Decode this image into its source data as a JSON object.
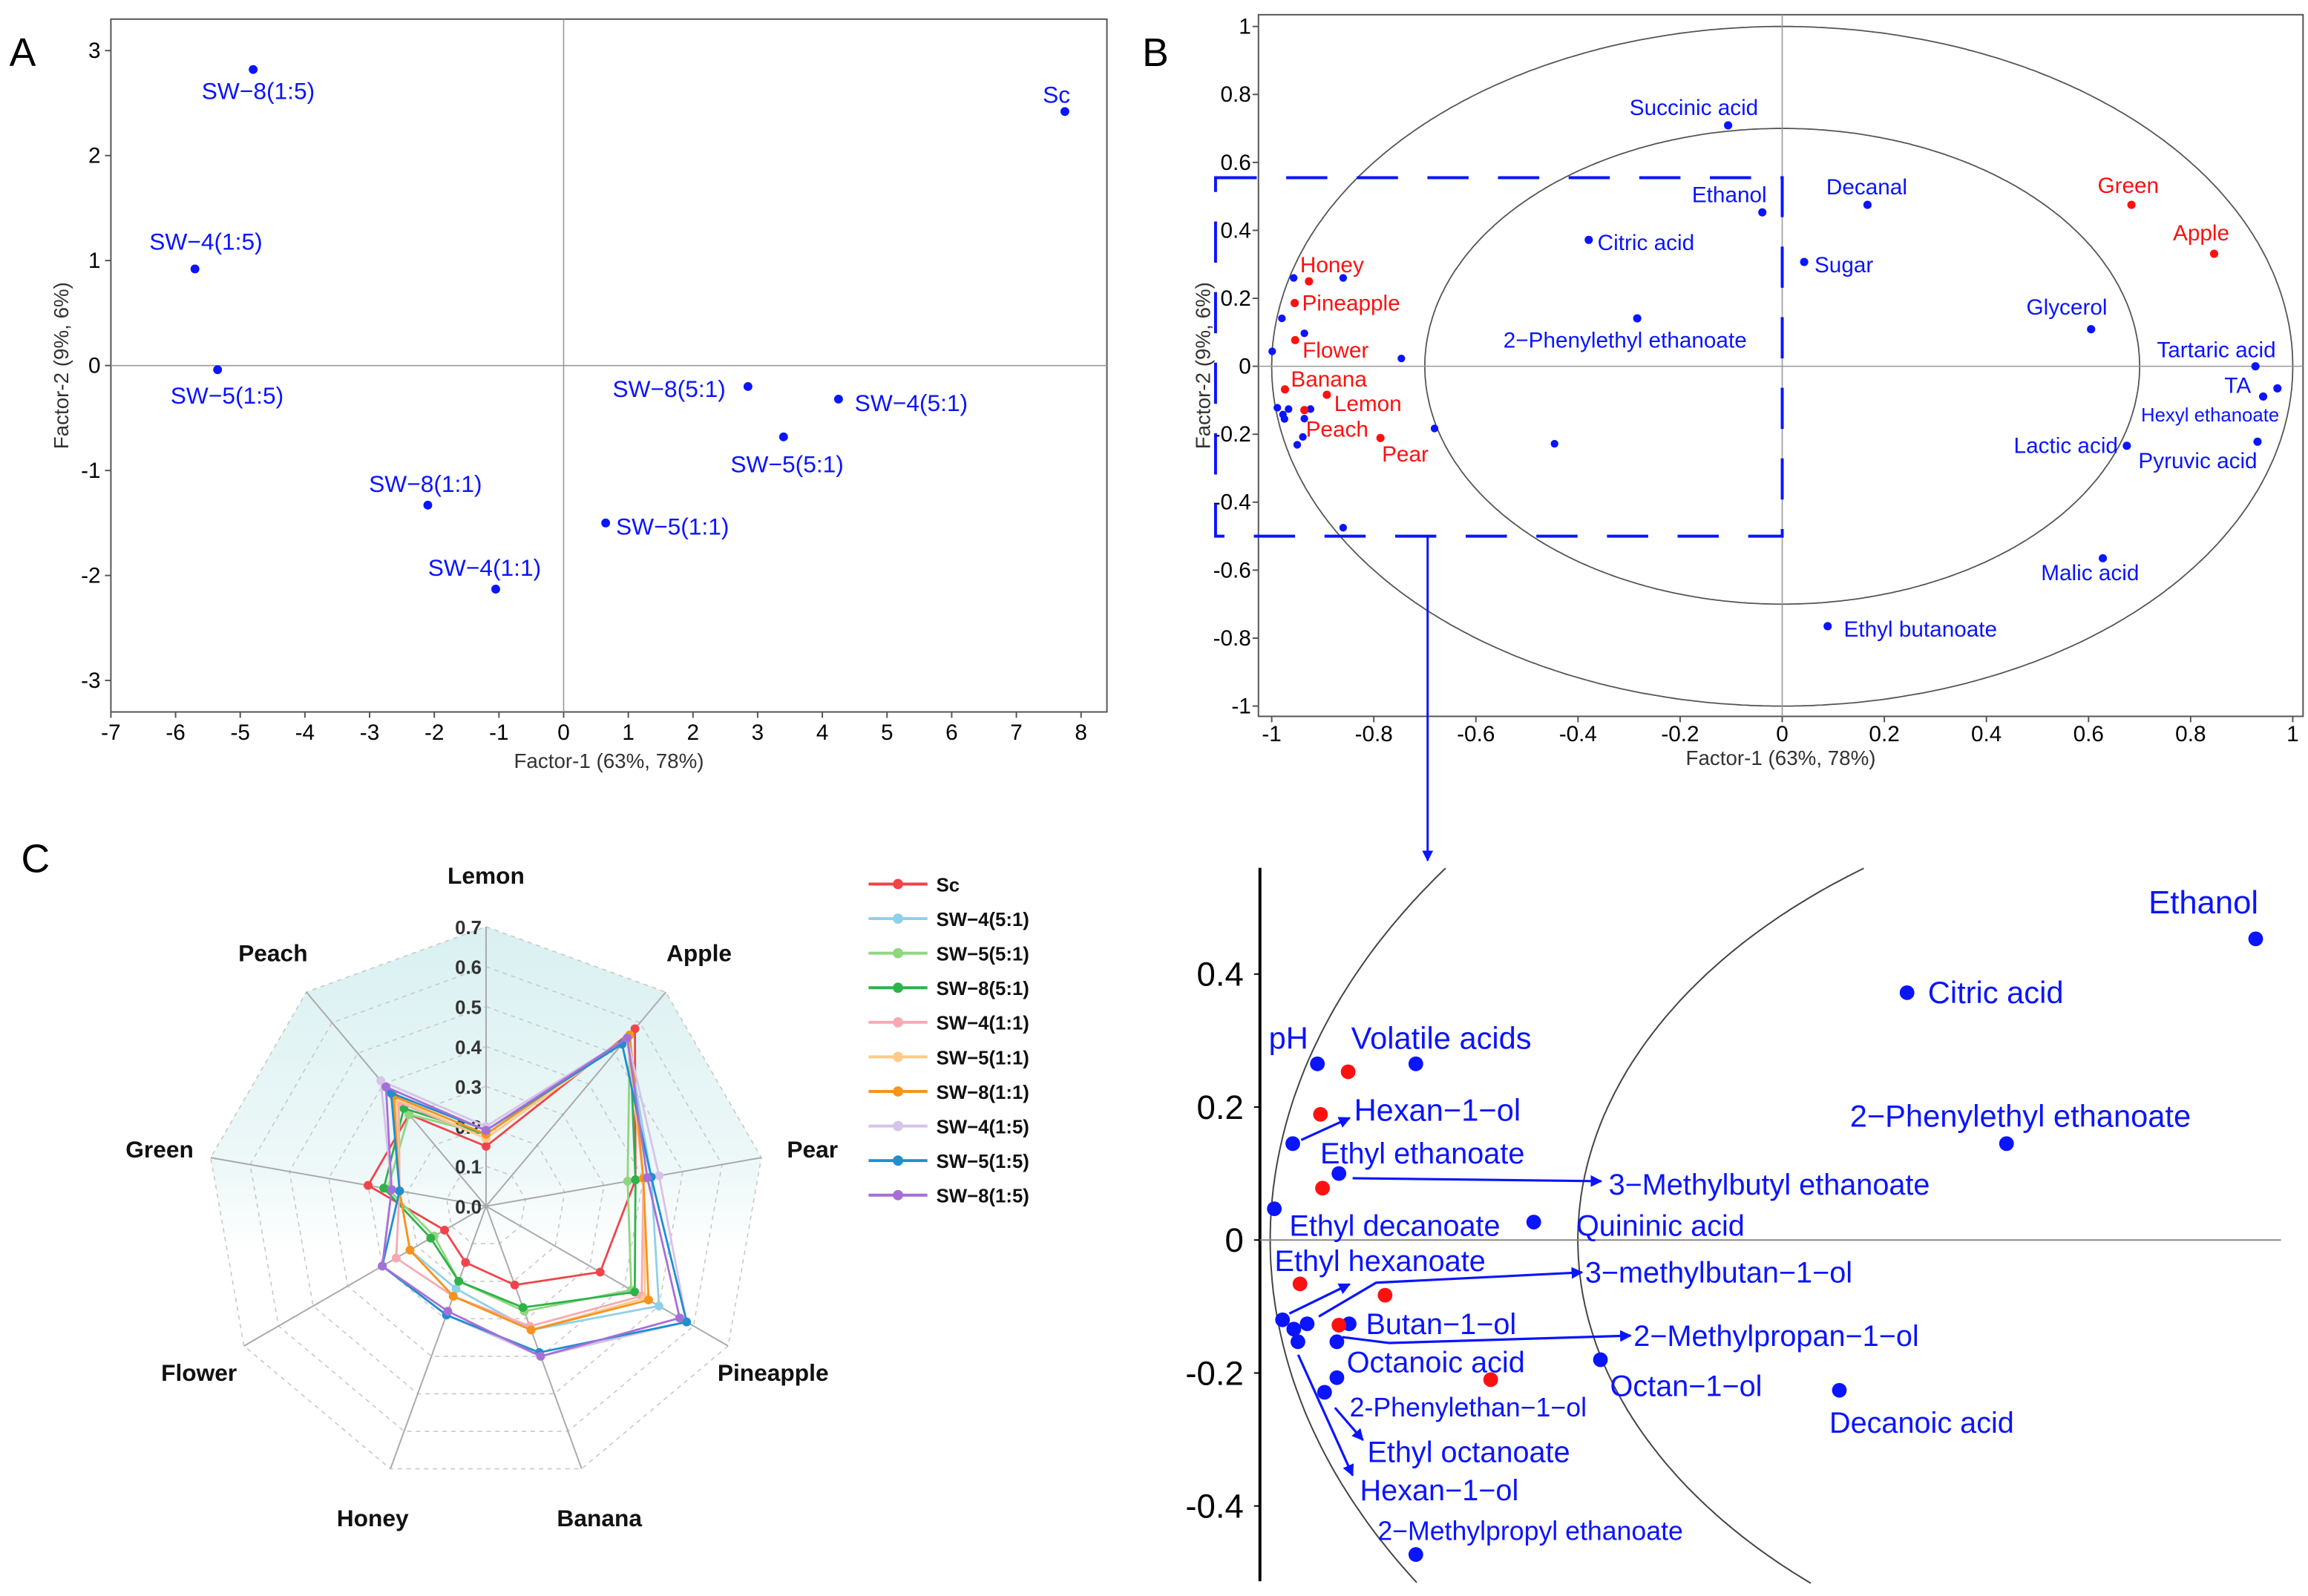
{
  "panel_letters": {
    "a": "A",
    "b": "B",
    "c": "C"
  },
  "colors": {
    "blue": "#0a14ff",
    "red": "#ff1010"
  },
  "chart_data": [
    {
      "type": "scatter",
      "panel": "A",
      "xlabel": "Factor-1 (63%, 78%)",
      "ylabel": "Factor-2 (9%, 6%)",
      "xlim": [
        -7,
        8.4
      ],
      "ylim": [
        -3.3,
        3.3
      ],
      "xticks": [
        -7,
        -6,
        -5,
        -4,
        -3,
        -2,
        -1,
        0,
        1,
        2,
        3,
        4,
        5,
        6,
        7,
        8
      ],
      "yticks": [
        -3,
        -2,
        -1,
        0,
        1,
        2,
        3
      ],
      "points": [
        {
          "label": "SW−8(1:5)",
          "x": -4.8,
          "y": 2.82
        },
        {
          "label": "Sc",
          "x": 7.75,
          "y": 2.42
        },
        {
          "label": "SW−4(1:5)",
          "x": -5.7,
          "y": 0.92
        },
        {
          "label": "SW−5(1:5)",
          "x": -5.35,
          "y": -0.04
        },
        {
          "label": "SW−8(5:1)",
          "x": 2.85,
          "y": -0.2
        },
        {
          "label": "SW−4(5:1)",
          "x": 4.25,
          "y": -0.32
        },
        {
          "label": "SW−5(5:1)",
          "x": 3.4,
          "y": -0.68
        },
        {
          "label": "SW−8(1:1)",
          "x": -2.1,
          "y": -1.33
        },
        {
          "label": "SW−5(1:1)",
          "x": 0.65,
          "y": -1.5
        },
        {
          "label": "SW−4(1:1)",
          "x": -1.05,
          "y": -2.13
        }
      ]
    },
    {
      "type": "scatter",
      "panel": "B",
      "xlabel": "Factor-1 (63%, 78%)",
      "ylabel": "Factor-2 (9%, 6%)",
      "xlim": [
        -1.02,
        1.02
      ],
      "ylim": [
        -1.04,
        1.04
      ],
      "xticks": [
        "-1",
        "-0.8",
        "-0.6",
        "-0.4",
        "-0.2",
        "0",
        "0.2",
        "0.4",
        "0.6",
        "0.8",
        "1"
      ],
      "yticks": [
        "-1",
        "-0.8",
        "-0.6",
        "-0.4",
        "-0.2",
        "0",
        "0.2",
        "0.4",
        "0.6",
        "0.8",
        "1"
      ],
      "circles": [
        1.0,
        0.7
      ],
      "zoom_box": {
        "x": [
          -1.11,
          0
        ],
        "y": [
          -0.5,
          0.555
        ]
      },
      "labeled_points": [
        {
          "label": "Succinic acid",
          "x": -0.106,
          "y": 0.709,
          "group": "variable"
        },
        {
          "label": "Ethanol",
          "x": -0.039,
          "y": 0.453,
          "group": "variable"
        },
        {
          "label": "Decanal",
          "x": 0.167,
          "y": 0.475,
          "group": "variable"
        },
        {
          "label": "Citric acid",
          "x": -0.379,
          "y": 0.372,
          "group": "variable"
        },
        {
          "label": "Sugar",
          "x": 0.043,
          "y": 0.307,
          "group": "variable"
        },
        {
          "label": "2−Phenylethyl ethanoate",
          "x": -0.284,
          "y": 0.141,
          "group": "variable"
        },
        {
          "label": "Glycerol",
          "x": 0.605,
          "y": 0.109,
          "group": "variable"
        },
        {
          "label": "Green",
          "x": 0.684,
          "y": 0.475,
          "group": "aroma"
        },
        {
          "label": "Apple",
          "x": 0.846,
          "y": 0.331,
          "group": "aroma"
        },
        {
          "label": "Tartaric acid",
          "x": 0.927,
          "y": 0.0,
          "group": "variable"
        },
        {
          "label": "TA",
          "x": 0.97,
          "y": -0.065,
          "group": "variable"
        },
        {
          "label": "Hexyl ethanoate",
          "x": 0.942,
          "y": -0.089,
          "group": "variable"
        },
        {
          "label": "Lactic acid",
          "x": 0.675,
          "y": -0.234,
          "group": "variable"
        },
        {
          "label": "Pyruvic acid",
          "x": 0.931,
          "y": -0.222,
          "group": "variable"
        },
        {
          "label": "Malic acid",
          "x": 0.628,
          "y": -0.565,
          "group": "variable"
        },
        {
          "label": "Ethyl butanoate",
          "x": 0.089,
          "y": -0.765,
          "group": "variable"
        },
        {
          "label": "Honey",
          "x": -0.927,
          "y": 0.25,
          "group": "aroma"
        },
        {
          "label": "Pineapple",
          "x": -0.955,
          "y": 0.186,
          "group": "aroma"
        },
        {
          "label": "Flower",
          "x": -0.954,
          "y": 0.077,
          "group": "aroma"
        },
        {
          "label": "Banana",
          "x": -0.974,
          "y": -0.068,
          "group": "aroma"
        },
        {
          "label": "Lemon",
          "x": -0.892,
          "y": -0.084,
          "group": "aroma"
        },
        {
          "label": "Peach",
          "x": -0.936,
          "y": -0.129,
          "group": "aroma"
        },
        {
          "label": "Pear",
          "x": -0.787,
          "y": -0.211,
          "group": "aroma"
        }
      ],
      "unlabeled_points": [
        [
          -0.957,
          0.26
        ],
        [
          -0.86,
          0.26
        ],
        [
          -0.98,
          0.141
        ],
        [
          -0.936,
          0.097
        ],
        [
          -0.999,
          0.044
        ],
        [
          -0.746,
          0.023
        ],
        [
          -0.989,
          -0.122
        ],
        [
          -0.967,
          -0.126
        ],
        [
          -0.978,
          -0.142
        ],
        [
          -0.975,
          -0.155
        ],
        [
          -0.936,
          -0.154
        ],
        [
          -0.924,
          -0.126
        ],
        [
          -0.939,
          -0.208
        ],
        [
          -0.95,
          -0.231
        ],
        [
          -0.681,
          -0.183
        ],
        [
          -0.446,
          -0.228
        ],
        [
          -0.86,
          -0.475
        ]
      ]
    },
    {
      "type": "scatter",
      "panel": "B-detail",
      "yticks": [
        "0.4",
        "0.2",
        "0",
        "-0.2",
        "-0.4"
      ],
      "xlim": [
        -1.01,
        0.01
      ],
      "ylim": [
        -0.51,
        0.56
      ],
      "circles": [
        1.0,
        0.7
      ],
      "blue_points": [
        [
          -0.954,
          0.265
        ],
        [
          -0.858,
          0.265
        ],
        [
          -0.978,
          0.145
        ],
        [
          -0.933,
          0.1
        ],
        [
          -0.996,
          0.047
        ],
        [
          -0.743,
          0.027
        ],
        [
          -0.282,
          0.145
        ],
        [
          -0.988,
          -0.12
        ],
        [
          -0.977,
          -0.134
        ],
        [
          -0.964,
          -0.126
        ],
        [
          -0.973,
          -0.153
        ],
        [
          -0.923,
          -0.126
        ],
        [
          -0.935,
          -0.153
        ],
        [
          -0.935,
          -0.207
        ],
        [
          -0.947,
          -0.229
        ],
        [
          -0.678,
          -0.18
        ],
        [
          -0.445,
          -0.226
        ],
        [
          -0.858,
          -0.473
        ],
        [
          -0.039,
          0.453
        ],
        [
          -0.379,
          0.372
        ]
      ],
      "red_points": [
        [
          -0.924,
          0.253
        ],
        [
          -0.951,
          0.189
        ],
        [
          -0.949,
          0.078
        ],
        [
          -0.971,
          -0.066
        ],
        [
          -0.888,
          -0.083
        ],
        [
          -0.933,
          -0.128
        ],
        [
          -0.785,
          -0.21
        ]
      ],
      "labels": [
        "Ethanol",
        "Citric acid",
        "pH",
        "Volatile acids",
        "Hexan−1−ol",
        "Ethyl ethanoate",
        "3−Methylbutyl ethanoate",
        "2−Phenylethyl ethanoate",
        "Ethyl decanoate",
        "Quininic acid",
        "Ethyl hexanoate",
        "3−methylbutan−1−ol",
        "Butan−1−ol",
        "2−Methylpropan−1−ol",
        "Octanoic acid",
        "Octan−1−ol",
        "2-Phenylethan−1−ol",
        "Decanoic acid",
        "Ethyl octanoate",
        "Hexan−1−ol",
        "2−Methylpropyl ethanoate"
      ]
    },
    {
      "type": "radar",
      "panel": "C",
      "axes": [
        "Lemon",
        "Apple",
        "Pear",
        "Pineapple",
        "Banana",
        "Honey",
        "Flower",
        "Green",
        "Peach"
      ],
      "rlim": [
        0,
        0.7
      ],
      "rticks": [
        "0.0",
        "0.1",
        "0.2",
        "0.3",
        "0.4",
        "0.5",
        "0.6",
        "0.7"
      ],
      "legend_position": "right",
      "series": [
        {
          "name": "Sc",
          "color": "#f0444a",
          "values": [
            0.15,
            0.58,
            0.38,
            0.33,
            0.21,
            0.15,
            0.12,
            0.3,
            0.3
          ]
        },
        {
          "name": "SW−4(5:1)",
          "color": "#8fd0ea",
          "values": [
            0.18,
            0.55,
            0.42,
            0.5,
            0.33,
            0.22,
            0.22,
            0.22,
            0.36
          ]
        },
        {
          "name": "SW−5(5:1)",
          "color": "#8ed67f",
          "values": [
            0.18,
            0.56,
            0.36,
            0.42,
            0.28,
            0.2,
            0.15,
            0.25,
            0.3
          ]
        },
        {
          "name": "SW−8(5:1)",
          "color": "#2fb24a",
          "values": [
            0.18,
            0.56,
            0.38,
            0.43,
            0.27,
            0.2,
            0.16,
            0.26,
            0.32
          ]
        },
        {
          "name": "SW−4(1:1)",
          "color": "#f7a9b3",
          "values": [
            0.17,
            0.55,
            0.4,
            0.45,
            0.32,
            0.24,
            0.26,
            0.22,
            0.34
          ]
        },
        {
          "name": "SW−5(1:1)",
          "color": "#fccb8a",
          "values": [
            0.17,
            0.55,
            0.4,
            0.46,
            0.33,
            0.24,
            0.22,
            0.22,
            0.35
          ]
        },
        {
          "name": "SW−8(1:1)",
          "color": "#f7931e",
          "values": [
            0.18,
            0.56,
            0.4,
            0.47,
            0.33,
            0.24,
            0.22,
            0.22,
            0.36
          ]
        },
        {
          "name": "SW−4(1:5)",
          "color": "#d7c3e8",
          "values": [
            0.2,
            0.55,
            0.44,
            0.58,
            0.4,
            0.29,
            0.3,
            0.24,
            0.41
          ]
        },
        {
          "name": "SW−5(1:5)",
          "color": "#1e8fd0",
          "values": [
            0.19,
            0.53,
            0.42,
            0.58,
            0.39,
            0.29,
            0.3,
            0.22,
            0.37
          ]
        },
        {
          "name": "SW−8(1:5)",
          "color": "#a66fd6",
          "values": [
            0.19,
            0.55,
            0.41,
            0.56,
            0.4,
            0.28,
            0.3,
            0.24,
            0.39
          ]
        }
      ]
    }
  ]
}
